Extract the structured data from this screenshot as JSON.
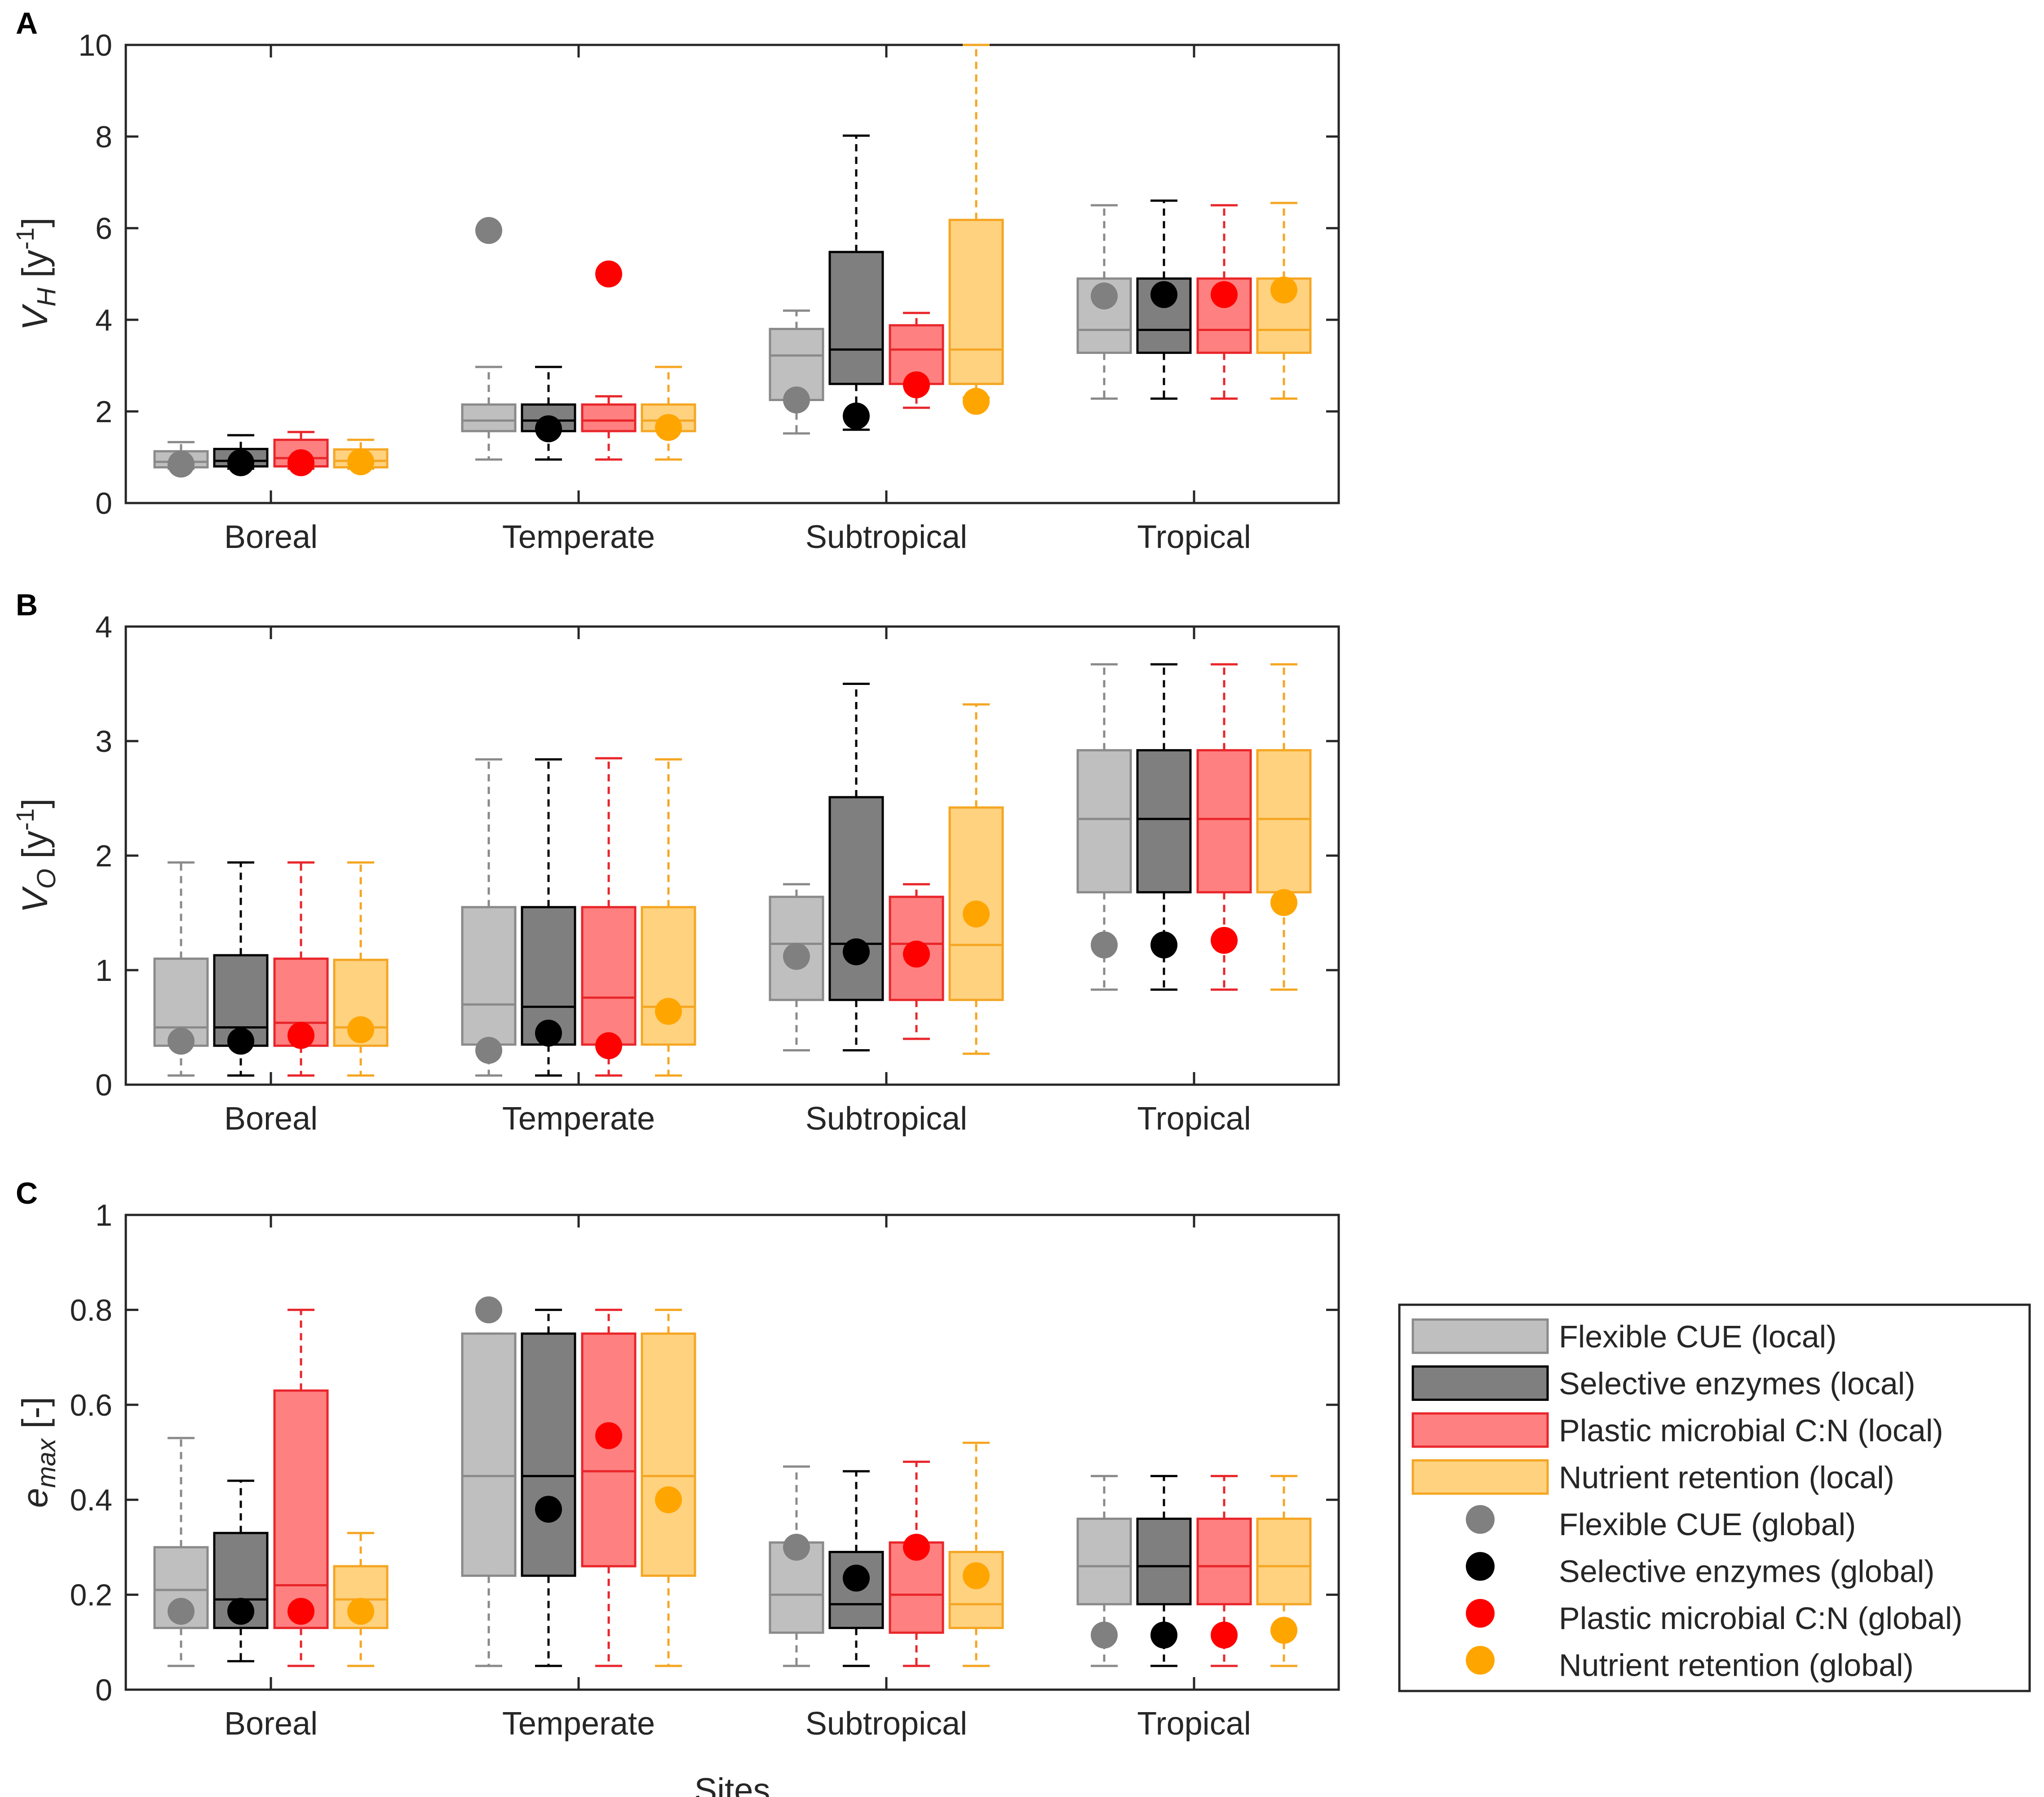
{
  "chart_data": [
    {
      "panel": "A",
      "type": "box",
      "title": "",
      "ylabel": {
        "main": "V",
        "sub": "H",
        "unit_prefix": " [y",
        "unit_exp": "-1",
        "unit_suffix": "]"
      },
      "xlabel": "",
      "ylim": [
        0,
        10
      ],
      "yticks": [
        "0",
        "2",
        "4",
        "6",
        "8",
        "10"
      ],
      "yticks_values": [
        0,
        2,
        4,
        6,
        8,
        10
      ],
      "categories": [
        "Boreal",
        "Temperate",
        "Subtropical",
        "Tropical"
      ],
      "series": [
        {
          "name": "Flexible CUE",
          "boxes": [
            {
              "whislo": 0.75,
              "q1": 0.78,
              "med": 0.9,
              "q3": 1.13,
              "whishi": 1.33
            },
            {
              "whislo": 0.95,
              "q1": 1.57,
              "med": 1.8,
              "q3": 2.15,
              "whishi": 2.97
            },
            {
              "whislo": 1.52,
              "q1": 2.25,
              "med": 3.22,
              "q3": 3.8,
              "whishi": 4.2
            },
            {
              "whislo": 2.28,
              "q1": 3.28,
              "med": 3.78,
              "q3": 4.9,
              "whishi": 6.5
            }
          ],
          "global": [
            0.85,
            5.95,
            2.25,
            4.52
          ]
        },
        {
          "name": "Selective enzymes",
          "boxes": [
            {
              "whislo": 0.75,
              "q1": 0.8,
              "med": 0.92,
              "q3": 1.18,
              "whishi": 1.48
            },
            {
              "whislo": 0.95,
              "q1": 1.57,
              "med": 1.8,
              "q3": 2.15,
              "whishi": 2.97
            },
            {
              "whislo": 1.6,
              "q1": 2.6,
              "med": 3.35,
              "q3": 5.48,
              "whishi": 8.02
            },
            {
              "whislo": 2.28,
              "q1": 3.28,
              "med": 3.78,
              "q3": 4.9,
              "whishi": 6.6
            }
          ],
          "global": [
            0.88,
            1.62,
            1.9,
            4.55
          ]
        },
        {
          "name": "Plastic microbial C:N",
          "boxes": [
            {
              "whislo": 0.75,
              "q1": 0.8,
              "med": 0.98,
              "q3": 1.38,
              "whishi": 1.55
            },
            {
              "whislo": 0.95,
              "q1": 1.57,
              "med": 1.8,
              "q3": 2.15,
              "whishi": 2.33
            },
            {
              "whislo": 2.08,
              "q1": 2.6,
              "med": 3.35,
              "q3": 3.88,
              "whishi": 4.15
            },
            {
              "whislo": 2.28,
              "q1": 3.28,
              "med": 3.78,
              "q3": 4.9,
              "whishi": 6.5
            }
          ],
          "global": [
            0.88,
            5.0,
            2.58,
            4.55
          ]
        },
        {
          "name": "Nutrient retention",
          "boxes": [
            {
              "whislo": 0.75,
              "q1": 0.78,
              "med": 0.92,
              "q3": 1.17,
              "whishi": 1.38
            },
            {
              "whislo": 0.95,
              "q1": 1.57,
              "med": 1.8,
              "q3": 2.15,
              "whishi": 2.97
            },
            {
              "whislo": 2.3,
              "q1": 2.6,
              "med": 3.35,
              "q3": 6.18,
              "whishi": 10.0
            },
            {
              "whislo": 2.28,
              "q1": 3.28,
              "med": 3.78,
              "q3": 4.9,
              "whishi": 6.55
            }
          ],
          "global": [
            0.9,
            1.65,
            2.22,
            4.65
          ]
        }
      ]
    },
    {
      "panel": "B",
      "type": "box",
      "title": "",
      "ylabel": {
        "main": "V",
        "sub": "O",
        "unit_prefix": " [y",
        "unit_exp": "-1",
        "unit_suffix": "]"
      },
      "xlabel": "",
      "ylim": [
        0,
        4
      ],
      "yticks": [
        "0",
        "1",
        "2",
        "3",
        "4"
      ],
      "yticks_values": [
        0,
        1,
        2,
        3,
        4
      ],
      "categories": [
        "Boreal",
        "Temperate",
        "Subtropical",
        "Tropical"
      ],
      "series": [
        {
          "name": "Flexible CUE",
          "boxes": [
            {
              "whislo": 0.08,
              "q1": 0.34,
              "med": 0.5,
              "q3": 1.1,
              "whishi": 1.94
            },
            {
              "whislo": 0.08,
              "q1": 0.35,
              "med": 0.7,
              "q3": 1.55,
              "whishi": 2.84
            },
            {
              "whislo": 0.3,
              "q1": 0.74,
              "med": 1.23,
              "q3": 1.64,
              "whishi": 1.75
            },
            {
              "whislo": 0.83,
              "q1": 1.68,
              "med": 2.32,
              "q3": 2.92,
              "whishi": 3.67
            }
          ],
          "global": [
            0.38,
            0.3,
            1.12,
            1.22
          ]
        },
        {
          "name": "Selective enzymes",
          "boxes": [
            {
              "whislo": 0.08,
              "q1": 0.34,
              "med": 0.5,
              "q3": 1.13,
              "whishi": 1.94
            },
            {
              "whislo": 0.08,
              "q1": 0.35,
              "med": 0.68,
              "q3": 1.55,
              "whishi": 2.84
            },
            {
              "whislo": 0.3,
              "q1": 0.74,
              "med": 1.23,
              "q3": 2.51,
              "whishi": 3.5
            },
            {
              "whislo": 0.83,
              "q1": 1.68,
              "med": 2.32,
              "q3": 2.92,
              "whishi": 3.67
            }
          ],
          "global": [
            0.38,
            0.45,
            1.16,
            1.22
          ]
        },
        {
          "name": "Plastic microbial C:N",
          "boxes": [
            {
              "whislo": 0.08,
              "q1": 0.34,
              "med": 0.54,
              "q3": 1.1,
              "whishi": 1.94
            },
            {
              "whislo": 0.08,
              "q1": 0.35,
              "med": 0.76,
              "q3": 1.55,
              "whishi": 2.85
            },
            {
              "whislo": 0.4,
              "q1": 0.74,
              "med": 1.23,
              "q3": 1.64,
              "whishi": 1.75
            },
            {
              "whislo": 0.83,
              "q1": 1.68,
              "med": 2.32,
              "q3": 2.92,
              "whishi": 3.67
            }
          ],
          "global": [
            0.43,
            0.34,
            1.14,
            1.26
          ]
        },
        {
          "name": "Nutrient retention",
          "boxes": [
            {
              "whislo": 0.08,
              "q1": 0.34,
              "med": 0.5,
              "q3": 1.09,
              "whishi": 1.94
            },
            {
              "whislo": 0.08,
              "q1": 0.35,
              "med": 0.68,
              "q3": 1.55,
              "whishi": 2.84
            },
            {
              "whislo": 0.27,
              "q1": 0.74,
              "med": 1.22,
              "q3": 2.42,
              "whishi": 3.32
            },
            {
              "whislo": 0.83,
              "q1": 1.68,
              "med": 2.32,
              "q3": 2.92,
              "whishi": 3.67
            }
          ],
          "global": [
            0.48,
            0.64,
            1.49,
            1.59
          ]
        }
      ]
    },
    {
      "panel": "C",
      "type": "box",
      "title": "",
      "ylabel": {
        "main": "e",
        "sub": "max",
        "unit_prefix": " [-]",
        "unit_exp": "",
        "unit_suffix": ""
      },
      "xlabel": "Sites",
      "ylim": [
        0,
        1
      ],
      "yticks": [
        "0",
        "0.2",
        "0.4",
        "0.6",
        "0.8",
        "1"
      ],
      "yticks_values": [
        0,
        0.2,
        0.4,
        0.6,
        0.8,
        1.0
      ],
      "categories": [
        "Boreal",
        "Temperate",
        "Subtropical",
        "Tropical"
      ],
      "series": [
        {
          "name": "Flexible CUE",
          "boxes": [
            {
              "whislo": 0.05,
              "q1": 0.13,
              "med": 0.21,
              "q3": 0.3,
              "whishi": 0.53
            },
            {
              "whislo": 0.05,
              "q1": 0.24,
              "med": 0.45,
              "q3": 0.75,
              "whishi": 0.75
            },
            {
              "whislo": 0.05,
              "q1": 0.12,
              "med": 0.2,
              "q3": 0.31,
              "whishi": 0.47
            },
            {
              "whislo": 0.05,
              "q1": 0.18,
              "med": 0.26,
              "q3": 0.36,
              "whishi": 0.45
            }
          ],
          "global": [
            0.165,
            0.8,
            0.3,
            0.115
          ]
        },
        {
          "name": "Selective enzymes",
          "boxes": [
            {
              "whislo": 0.06,
              "q1": 0.13,
              "med": 0.19,
              "q3": 0.33,
              "whishi": 0.44
            },
            {
              "whislo": 0.05,
              "q1": 0.24,
              "med": 0.45,
              "q3": 0.75,
              "whishi": 0.8
            },
            {
              "whislo": 0.05,
              "q1": 0.13,
              "med": 0.18,
              "q3": 0.29,
              "whishi": 0.46
            },
            {
              "whislo": 0.05,
              "q1": 0.18,
              "med": 0.26,
              "q3": 0.36,
              "whishi": 0.45
            }
          ],
          "global": [
            0.165,
            0.38,
            0.235,
            0.115
          ]
        },
        {
          "name": "Plastic microbial C:N",
          "boxes": [
            {
              "whislo": 0.05,
              "q1": 0.13,
              "med": 0.22,
              "q3": 0.63,
              "whishi": 0.8
            },
            {
              "whislo": 0.05,
              "q1": 0.26,
              "med": 0.46,
              "q3": 0.75,
              "whishi": 0.8
            },
            {
              "whislo": 0.05,
              "q1": 0.12,
              "med": 0.2,
              "q3": 0.31,
              "whishi": 0.48
            },
            {
              "whislo": 0.05,
              "q1": 0.18,
              "med": 0.26,
              "q3": 0.36,
              "whishi": 0.45
            }
          ],
          "global": [
            0.165,
            0.535,
            0.3,
            0.115
          ]
        },
        {
          "name": "Nutrient retention",
          "boxes": [
            {
              "whislo": 0.05,
              "q1": 0.13,
              "med": 0.19,
              "q3": 0.26,
              "whishi": 0.33
            },
            {
              "whislo": 0.05,
              "q1": 0.24,
              "med": 0.45,
              "q3": 0.75,
              "whishi": 0.8
            },
            {
              "whislo": 0.05,
              "q1": 0.13,
              "med": 0.18,
              "q3": 0.29,
              "whishi": 0.52
            },
            {
              "whislo": 0.05,
              "q1": 0.18,
              "med": 0.26,
              "q3": 0.36,
              "whishi": 0.45
            }
          ],
          "global": [
            0.165,
            0.4,
            0.24,
            0.125
          ]
        }
      ]
    }
  ],
  "series_styles": [
    {
      "name": "Flexible CUE",
      "fill": "#bfbfbf",
      "stroke": "#8a8a8a",
      "median": "#8a8a8a",
      "dot": "#808080"
    },
    {
      "name": "Selective enzymes",
      "fill": "#7f7f7f",
      "stroke": "#000000",
      "median": "#000000",
      "dot": "#000000"
    },
    {
      "name": "Plastic microbial C:N",
      "fill": "#ff8080",
      "stroke": "#e8262b",
      "median": "#e8262b",
      "dot": "#ff0000"
    },
    {
      "name": "Nutrient retention",
      "fill": "#ffd280",
      "stroke": "#f5a623",
      "median": "#f5a623",
      "dot": "#ffa500"
    }
  ],
  "legend": {
    "placement": "right",
    "box_entries": [
      "Flexible CUE (local)",
      "Selective enzymes (local)",
      "Plastic microbial C:N (local)",
      "Nutrient retention (local)"
    ],
    "dot_entries": [
      "Flexible CUE (global)",
      "Selective enzymes (global)",
      "Plastic microbial C:N (global)",
      "Nutrient retention (global)"
    ]
  }
}
